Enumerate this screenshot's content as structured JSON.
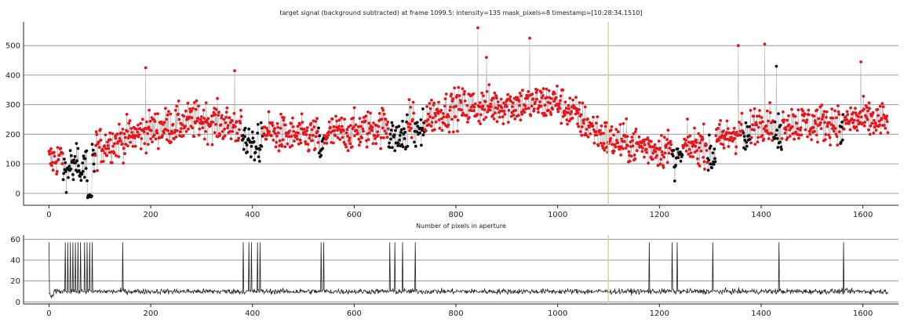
{
  "chart_data": [
    {
      "type": "scatter",
      "title": "target signal (background subtracted) at frame 1099.5: intensity=135 mask_pixels=8 timestamp=[10:28:34.1510]",
      "xlabel": "",
      "ylabel": "",
      "xlim": [
        -50,
        1670
      ],
      "ylim": [
        -40,
        580
      ],
      "xticks": [
        0,
        200,
        400,
        600,
        800,
        1000,
        1200,
        1400,
        1600
      ],
      "yticks": [
        0,
        100,
        200,
        300,
        400,
        500
      ],
      "grid": "horizontal",
      "marker_line": 1099.5,
      "colors": {
        "normal": "#e8141c",
        "flagged": "#111111",
        "line": "#b8b8b8",
        "marker": "#d8d890"
      },
      "n_points": 1650,
      "series": [
        {
          "name": "",
          "trend_x": [
            0,
            100,
            200,
            300,
            400,
            500,
            600,
            700,
            800,
            900,
            1000,
            1100,
            1200,
            1300,
            1400,
            1500,
            1600,
            1650
          ],
          "trend_y": [
            110,
            160,
            215,
            250,
            215,
            190,
            210,
            240,
            290,
            300,
            310,
            180,
            150,
            165,
            245,
            235,
            250,
            240
          ]
        }
      ],
      "flagged_x_ranges": [
        [
          28,
          90
        ],
        [
          380,
          420
        ],
        [
          530,
          540
        ],
        [
          668,
          705
        ],
        [
          718,
          738
        ],
        [
          1225,
          1245
        ],
        [
          1295,
          1310
        ],
        [
          1365,
          1378
        ],
        [
          1425,
          1440
        ],
        [
          1555,
          1562
        ]
      ],
      "peaks": [
        {
          "x": 843,
          "y": 560
        },
        {
          "x": 860,
          "y": 460
        },
        {
          "x": 945,
          "y": 525
        },
        {
          "x": 1355,
          "y": 500
        },
        {
          "x": 1407,
          "y": 505
        },
        {
          "x": 1596,
          "y": 445
        },
        {
          "x": 190,
          "y": 425
        },
        {
          "x": 365,
          "y": 415
        },
        {
          "x": 1430,
          "y": 430
        }
      ]
    },
    {
      "type": "line",
      "title": "Number of pixels in aperture",
      "xlabel": "",
      "ylabel": "",
      "xlim": [
        -50,
        1670
      ],
      "ylim": [
        -2,
        64
      ],
      "xticks": [
        0,
        200,
        400,
        600,
        800,
        1000,
        1200,
        1400,
        1600
      ],
      "yticks": [
        0,
        20,
        40,
        60
      ],
      "grid": "horizontal",
      "baseline": 10,
      "spike_value": 57,
      "spike_x": [
        0,
        32,
        37,
        42,
        47,
        52,
        57,
        62,
        70,
        75,
        80,
        85,
        145,
        382,
        393,
        398,
        410,
        415,
        535,
        540,
        670,
        680,
        695,
        720,
        1180,
        1225,
        1235,
        1305,
        1435,
        1562
      ],
      "color": "#222222"
    }
  ]
}
